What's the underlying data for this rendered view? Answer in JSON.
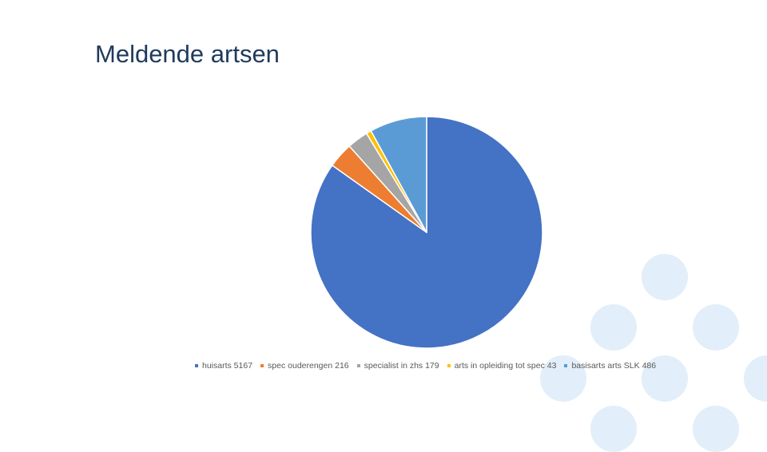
{
  "slide": {
    "title": "Meldende artsen",
    "colors": {
      "title": "#1f3a5c",
      "decoration": "#e2eef9"
    }
  },
  "chart_data": {
    "type": "pie",
    "title": "",
    "categories": [
      "huisarts",
      "spec ouderengen",
      "specialist in zhs",
      "arts in opleiding tot spec",
      "basisarts arts SLK"
    ],
    "values": [
      5167,
      216,
      179,
      43,
      486
    ],
    "colors": [
      "#4472c4",
      "#ed7d31",
      "#a5a5a5",
      "#ffc000",
      "#5b9bd5"
    ],
    "legend_position": "bottom",
    "legend": [
      {
        "label": "huisarts 5167",
        "color": "#4472c4"
      },
      {
        "label": "spec ouderengen 216",
        "color": "#ed7d31"
      },
      {
        "label": "specialist in zhs 179",
        "color": "#a5a5a5"
      },
      {
        "label": "arts in opleiding tot spec 43",
        "color": "#ffc000"
      },
      {
        "label": "basisarts arts SLK 486",
        "color": "#5b9bd5"
      }
    ]
  }
}
